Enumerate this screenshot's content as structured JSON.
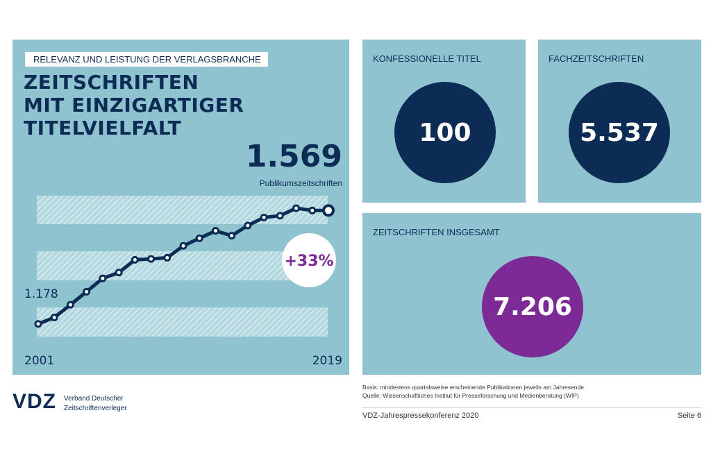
{
  "left_panel": {
    "kicker": "RELEVANZ UND LEISTUNG DER VERLAGSBRANCHE",
    "title_lines": [
      "ZEITSCHRIFTEN",
      "MIT EINZIGARTIGER",
      "TITELVIELFALT"
    ],
    "big_number": "1.569",
    "big_number_label": "Publikumszeitschriften",
    "start_label": "1.178",
    "growth_badge": "+33%",
    "year_start": "2001",
    "year_end": "2019"
  },
  "chart_data": {
    "type": "line",
    "x": [
      2001,
      2002,
      2003,
      2004,
      2005,
      2006,
      2007,
      2008,
      2009,
      2010,
      2011,
      2012,
      2013,
      2014,
      2015,
      2016,
      2017,
      2018,
      2019
    ],
    "values": [
      1178,
      1200,
      1244,
      1289,
      1335,
      1355,
      1399,
      1402,
      1406,
      1447,
      1473,
      1499,
      1482,
      1517,
      1545,
      1551,
      1577,
      1569,
      1569
    ],
    "xlim": [
      2001,
      2019
    ],
    "tick_labels": [
      "2001",
      "2019"
    ],
    "annotations": [
      "1.178",
      "+33%"
    ],
    "grid": false
  },
  "panels": [
    {
      "title": "KONFESSIONELLE TITEL",
      "value": "100",
      "color": "#0d2c55"
    },
    {
      "title": "FACHZEITSCHRIFTEN",
      "value": "5.537",
      "color": "#0d2c55"
    },
    {
      "title": "ZEITSCHRIFTEN INSGESAMT",
      "value": "7.206",
      "color": "#7b2a96"
    }
  ],
  "colors": {
    "panel": "#8fc3cf",
    "navy": "#0d2c55",
    "purple": "#7b2a96"
  },
  "footer": {
    "logo": "VDZ",
    "org_line1": "Verband Deutscher",
    "org_line2": "Zeitschriftenverleger",
    "basis": "Basis: mindestens quartalsweise erscheinende Publikationen jeweils am Jahresende",
    "source": "Quelle: Wissenschaftliches Institut für Presseforschung und Medienberatung (WIP)",
    "event": "VDZ-Jahrespressekonferenz 2020",
    "page": "Seite 6"
  }
}
